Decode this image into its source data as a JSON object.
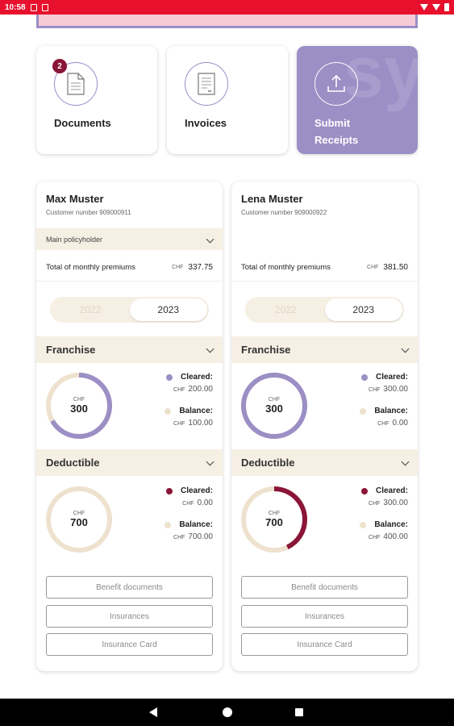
{
  "status_bar": {
    "time": "10:58"
  },
  "tiles": [
    {
      "label": "Documents",
      "badge": "2",
      "icon": "document-icon"
    },
    {
      "label": "Invoices",
      "icon": "invoice-icon"
    },
    {
      "label": "Submit\nReceipts",
      "icon": "upload-icon"
    }
  ],
  "cards": [
    {
      "name": "Max Muster",
      "customer_number": "Customer number 909000911",
      "policy_role": "Main policyholder",
      "premium_label": "Total of monthly premiums",
      "premium_currency": "CHF",
      "premium_amount": "337.75",
      "years": [
        "2022",
        "2023"
      ],
      "selected_year": "2023",
      "franchise": {
        "title": "Franchise",
        "currency": "CHF",
        "total": "300",
        "cleared_label": "Cleared:",
        "cleared": "200.00",
        "balance_label": "Balance:",
        "balance": "100.00",
        "cleared_fraction": 0.6667
      },
      "deductible": {
        "title": "Deductible",
        "currency": "CHF",
        "total": "700",
        "cleared_label": "Cleared:",
        "cleared": "0.00",
        "balance_label": "Balance:",
        "balance": "700.00",
        "cleared_fraction": 0
      },
      "buttons": [
        "Benefit documents",
        "Insurances",
        "Insurance Card"
      ]
    },
    {
      "name": "Lena Muster",
      "customer_number": "Customer number 909000922",
      "premium_label": "Total of monthly premiums",
      "premium_currency": "CHF",
      "premium_amount": "381.50",
      "years": [
        "2022",
        "2023"
      ],
      "selected_year": "2023",
      "franchise": {
        "title": "Franchise",
        "currency": "CHF",
        "total": "300",
        "cleared_label": "Cleared:",
        "cleared": "300.00",
        "balance_label": "Balance:",
        "balance": "0.00",
        "cleared_fraction": 1
      },
      "deductible": {
        "title": "Deductible",
        "currency": "CHF",
        "total": "700",
        "cleared_label": "Cleared:",
        "cleared": "300.00",
        "balance_label": "Balance:",
        "balance": "400.00",
        "cleared_fraction": 0.4286
      },
      "buttons": [
        "Benefit documents",
        "Insurances",
        "Insurance Card"
      ]
    }
  ],
  "colors": {
    "status_bar": "#e8112d",
    "accent_purple": "#9b8fc5",
    "accent_maroon": "#8a1538",
    "beige": "#f6efe4",
    "donut_track": "#eee2cf"
  }
}
